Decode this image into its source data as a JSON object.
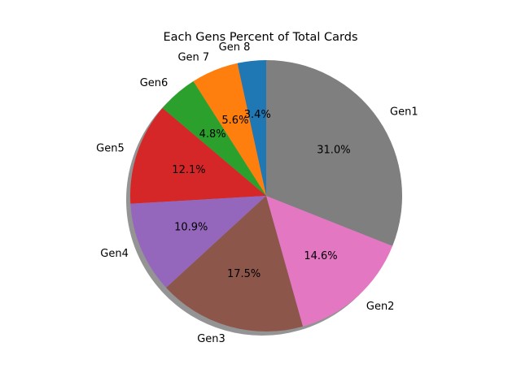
{
  "chart_data": {
    "type": "pie",
    "title": "Each Gens Percent of Total Cards",
    "shadow": true,
    "direction": "counterclockwise",
    "slices": [
      {
        "label": "Gen 8",
        "percent": 3.4,
        "pct_label": "3.4%",
        "color": "#1f77b4"
      },
      {
        "label": "Gen 7",
        "percent": 5.6,
        "pct_label": "5.6%",
        "color": "#ff7f0e"
      },
      {
        "label": "Gen6",
        "percent": 4.8,
        "pct_label": "4.8%",
        "color": "#2ca02c"
      },
      {
        "label": "Gen5",
        "percent": 12.1,
        "pct_label": "12.1%",
        "color": "#d62728"
      },
      {
        "label": "Gen4",
        "percent": 10.9,
        "pct_label": "10.9%",
        "color": "#9467bd"
      },
      {
        "label": "Gen3",
        "percent": 17.5,
        "pct_label": "17.5%",
        "color": "#8c564b"
      },
      {
        "label": "Gen2",
        "percent": 14.6,
        "pct_label": "14.6%",
        "color": "#e377c2"
      },
      {
        "label": "Gen1",
        "percent": 31.0,
        "pct_label": "31.0%",
        "color": "#7f7f7f"
      }
    ]
  }
}
